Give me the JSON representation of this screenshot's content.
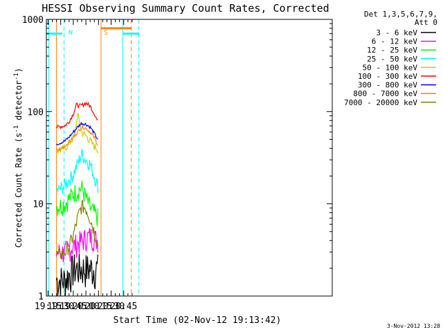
{
  "chart_data": {
    "type": "line",
    "title": "HESSI Observing Summary Count Rates, Corrected",
    "xlabel": "Start Time (02-Nov-12 19:13:42)",
    "ylabel_main": "Corrected Count Rate (s",
    "ylabel_sup1": "-1",
    "ylabel_mid": " detector",
    "ylabel_sup2": "-1",
    "ylabel_end": ")",
    "x_range_min": [
      1153,
      1493
    ],
    "y_range": [
      1,
      1000
    ],
    "y_scale": "log",
    "x_ticks": [
      "19:15",
      "19:30",
      "19:45",
      "20:00",
      "20:15",
      "20:30",
      "20:45"
    ],
    "y_ticks": [
      "1",
      "10",
      "100",
      "1000"
    ],
    "legend_header": [
      "Det 1,3,5,6,7,9,",
      "Att 0"
    ],
    "footer": "3-Nov-2012 13:28",
    "data_start_min": 1164,
    "data_end_min": 1215,
    "series": [
      {
        "name": "3 - 6 keV",
        "color": "#000000",
        "x": [
          1167,
          1175,
          1185,
          1195,
          1205,
          1215
        ],
        "values": [
          1.5,
          1.5,
          2.0,
          2.0,
          2.0,
          2.0
        ]
      },
      {
        "name": "6 - 12 keV",
        "color": "#ff00ff",
        "x": [
          1167,
          1175,
          1185,
          1195,
          1205,
          1215
        ],
        "values": [
          3.0,
          3.0,
          3.5,
          4.0,
          4.5,
          4.0
        ]
      },
      {
        "name": "12 - 25 keV",
        "color": "#00ff00",
        "x": [
          1167,
          1175,
          1185,
          1195,
          1205,
          1215
        ],
        "values": [
          9.5,
          10,
          13,
          15,
          9,
          7
        ]
      },
      {
        "name": "25 - 50 keV",
        "color": "#00ffff",
        "x": [
          1167,
          1175,
          1185,
          1195,
          1200,
          1205,
          1210,
          1215
        ],
        "values": [
          14,
          16,
          21,
          35,
          30,
          27,
          20,
          15
        ]
      },
      {
        "name": "50 - 100 keV",
        "color": "#cccc00",
        "x": [
          1167,
          1175,
          1180,
          1187,
          1190,
          1195,
          1200,
          1205,
          1210,
          1215
        ],
        "values": [
          38,
          40,
          45,
          55,
          95,
          60,
          55,
          48,
          42,
          38
        ]
      },
      {
        "name": "100 - 300 keV",
        "color": "#ff0000",
        "x": [
          1167,
          1175,
          1180,
          1185,
          1189,
          1192,
          1196,
          1200,
          1205,
          1210,
          1215
        ],
        "values": [
          68,
          70,
          78,
          95,
          120,
          115,
          118,
          124,
          115,
          95,
          75
        ]
      },
      {
        "name": "300 - 800 keV",
        "color": "#0000ff",
        "x": [
          1167,
          1175,
          1180,
          1185,
          1190,
          1195,
          1200,
          1205,
          1210,
          1215
        ],
        "values": [
          45,
          48,
          53,
          60,
          68,
          75,
          73,
          68,
          58,
          48
        ]
      },
      {
        "name": "800 - 7000 keV",
        "color": "#ff8000",
        "x": [
          1167,
          1175,
          1180,
          1185,
          1190,
          1195,
          1200,
          1205,
          1210,
          1215
        ],
        "values": [
          38,
          42,
          47,
          52,
          60,
          68,
          66,
          60,
          52,
          42
        ]
      },
      {
        "name": "7000 - 20000 keV",
        "color": "#808000",
        "x": [
          1167,
          1175,
          1180,
          1185,
          1190,
          1195,
          1200,
          1205,
          1210,
          1215
        ],
        "values": [
          2.8,
          3.0,
          3.5,
          4.5,
          7,
          9.5,
          9,
          7,
          5,
          3.5
        ]
      }
    ],
    "annotations": [
      {
        "label": "N",
        "color": "#00ffff",
        "x": 1176
      },
      {
        "label": "S",
        "color": "#ff8000",
        "x": 1218
      }
    ],
    "flag_lines": [
      {
        "type": "solid",
        "color": "#00ffff",
        "x": 1156
      },
      {
        "type": "dashed",
        "color": "#00ffff",
        "x": 1174
      },
      {
        "type": "solid",
        "color": "#ff8000",
        "x": 1165
      },
      {
        "type": "solid",
        "color": "#ff8000",
        "x": 1218
      },
      {
        "type": "solid",
        "color": "#00ffff",
        "x": 1244
      },
      {
        "type": "dashed",
        "color": "#ff8000",
        "x": 1254
      },
      {
        "type": "dashed",
        "color": "#00ffff",
        "x": 1263
      }
    ],
    "flag_bars": [
      {
        "color": "#00ffff",
        "x0": 1153,
        "x1": 1172,
        "y": 700
      },
      {
        "color": "#ff8000",
        "x0": 1218,
        "x1": 1254,
        "y": 800
      },
      {
        "color": "#00ffff",
        "x0": 1244,
        "x1": 1263,
        "y": 700
      }
    ]
  }
}
